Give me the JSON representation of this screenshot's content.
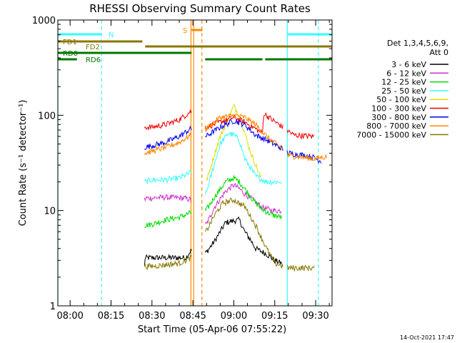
{
  "colors": {
    "background": "#ffffff",
    "axis": "#000000",
    "cyan": "#33ffff",
    "orange": "#ff8800",
    "olive": "#887700",
    "green": "#007700"
  },
  "chart_data": {
    "type": "line",
    "title": "RHESSI Observing Summary Count Rates",
    "xlabel": "Start Time (05-Apr-06 07:55:22)",
    "ylabel": "Count Rate (s⁻¹ detector⁻¹)",
    "yscale": "log",
    "ylim": [
      1,
      1000
    ],
    "xlim_minutes": [
      -4.5,
      96
    ],
    "xticks": [
      {
        "m": 0,
        "label": "08:00"
      },
      {
        "m": 15,
        "label": "08:15"
      },
      {
        "m": 30,
        "label": "08:30"
      },
      {
        "m": 45,
        "label": "08:45"
      },
      {
        "m": 60,
        "label": "09:00"
      },
      {
        "m": 75,
        "label": "09:15"
      },
      {
        "m": 90,
        "label": "09:30"
      }
    ],
    "yticks": [
      {
        "v": 1,
        "label": "1"
      },
      {
        "v": 10,
        "label": "10"
      },
      {
        "v": 100,
        "label": "100"
      },
      {
        "v": 1000,
        "label": "1000"
      }
    ],
    "timestamp": "14-Oct-2021 17:47",
    "legend_header": [
      "Det 1,3,4,5,6,9,",
      "Att 0"
    ],
    "legend_position": "right",
    "gaps": [
      [
        -4.5,
        27.0
      ],
      [
        44.5,
        49.5
      ],
      [
        78.0,
        79.5
      ]
    ],
    "series": [
      {
        "name": "3 - 6 keV",
        "color": "#000000",
        "values": [
          [
            27.2,
            2.5
          ],
          [
            27.5,
            3.2
          ],
          [
            42.5,
            3.2
          ],
          [
            44.2,
            3.8
          ],
          [
            49.8,
            3.6
          ],
          [
            53,
            4.8
          ],
          [
            57,
            7.5
          ],
          [
            62,
            8
          ],
          [
            64,
            6
          ],
          [
            66,
            5
          ],
          [
            68,
            4
          ],
          [
            72,
            3.5
          ],
          [
            75,
            3
          ],
          [
            77.5,
            2.8
          ]
        ]
      },
      {
        "name": "6 - 12 keV",
        "color": "#cc33cc",
        "values": [
          [
            27.2,
            13
          ],
          [
            28,
            13.5
          ],
          [
            35,
            13.8
          ],
          [
            42,
            13.5
          ],
          [
            44.2,
            13
          ],
          [
            49.8,
            7
          ],
          [
            53,
            11
          ],
          [
            57,
            16
          ],
          [
            60,
            18.5
          ],
          [
            62,
            17
          ],
          [
            64,
            15
          ],
          [
            67,
            13
          ],
          [
            70,
            11
          ],
          [
            74,
            10
          ],
          [
            77.5,
            10
          ]
        ]
      },
      {
        "name": "12 - 25 keV",
        "color": "#00dd00",
        "values": [
          [
            27.2,
            7
          ],
          [
            30,
            7.2
          ],
          [
            35,
            8
          ],
          [
            40,
            8.5
          ],
          [
            44.2,
            9.5
          ],
          [
            49.8,
            10
          ],
          [
            53,
            14
          ],
          [
            57,
            20
          ],
          [
            60,
            22
          ],
          [
            62,
            20
          ],
          [
            64,
            17
          ],
          [
            67,
            13
          ],
          [
            70,
            10.5
          ],
          [
            74,
            9
          ],
          [
            77.5,
            8.5
          ]
        ]
      },
      {
        "name": "25 - 50 keV",
        "color": "#33ffff",
        "values": [
          [
            27.2,
            20
          ],
          [
            30,
            21
          ],
          [
            35,
            21
          ],
          [
            40,
            22
          ],
          [
            44.2,
            25
          ],
          [
            49.8,
            15
          ],
          [
            52,
            25
          ],
          [
            55,
            50
          ],
          [
            58,
            65
          ],
          [
            60,
            62
          ],
          [
            62,
            55
          ],
          [
            64,
            35
          ],
          [
            68,
            23
          ],
          [
            72,
            20
          ],
          [
            77.5,
            20
          ]
        ]
      },
      {
        "name": "50 - 100 keV",
        "color": "#dddd00",
        "values": [
          [
            49.8,
            20
          ],
          [
            51,
            25
          ],
          [
            53,
            40
          ],
          [
            55,
            60
          ],
          [
            57,
            80
          ],
          [
            60,
            125
          ],
          [
            62,
            100
          ],
          [
            64,
            65
          ],
          [
            66,
            42
          ],
          [
            68,
            30
          ],
          [
            70,
            22
          ]
        ]
      },
      {
        "name": "100 - 300 keV",
        "color": "#ee0000",
        "values": [
          [
            27.2,
            75
          ],
          [
            30,
            75
          ],
          [
            35,
            80
          ],
          [
            40,
            90
          ],
          [
            44.2,
            110
          ],
          [
            49.8,
            75
          ],
          [
            55,
            85
          ],
          [
            60,
            95
          ],
          [
            64,
            85
          ],
          [
            68,
            72
          ],
          [
            70.5,
            65
          ],
          [
            71,
            105
          ],
          [
            74,
            90
          ],
          [
            78,
            75
          ],
          [
            82,
            62
          ],
          [
            89.5,
            60
          ]
        ]
      },
      {
        "name": "300 - 800 keV",
        "color": "#0000ee",
        "values": [
          [
            27.2,
            46
          ],
          [
            30,
            48
          ],
          [
            35,
            52
          ],
          [
            40,
            60
          ],
          [
            44.2,
            72
          ],
          [
            49.8,
            60
          ],
          [
            55,
            75
          ],
          [
            60,
            88
          ],
          [
            64,
            80
          ],
          [
            68,
            62
          ],
          [
            72,
            55
          ],
          [
            77.5,
            45
          ],
          [
            80,
            40
          ],
          [
            86,
            38
          ],
          [
            89.5,
            36
          ],
          [
            92,
            33
          ]
        ]
      },
      {
        "name": "800 - 7000 keV",
        "color": "#ff8800",
        "values": [
          [
            27.2,
            40
          ],
          [
            30,
            42
          ],
          [
            35,
            46
          ],
          [
            40,
            52
          ],
          [
            44.2,
            62
          ],
          [
            49.8,
            72
          ],
          [
            55,
            95
          ],
          [
            60,
            100
          ],
          [
            64,
            95
          ],
          [
            68,
            80
          ],
          [
            72,
            60
          ],
          [
            77.5,
            45
          ],
          [
            80,
            38
          ],
          [
            86,
            36
          ],
          [
            89.5,
            35
          ],
          [
            94,
            37
          ]
        ]
      },
      {
        "name": "7000 - 15000 keV",
        "color": "#887700",
        "values": [
          [
            27.2,
            2.6
          ],
          [
            30,
            2.6
          ],
          [
            35,
            2.7
          ],
          [
            40,
            2.8
          ],
          [
            44.2,
            3.2
          ],
          [
            49.8,
            6
          ],
          [
            53,
            9
          ],
          [
            56,
            12
          ],
          [
            60,
            13
          ],
          [
            64,
            11
          ],
          [
            68,
            7
          ],
          [
            72,
            4
          ],
          [
            75,
            2.8
          ],
          [
            80,
            2.5
          ],
          [
            89.5,
            2.5
          ]
        ]
      }
    ],
    "annotations": [
      {
        "label": "N",
        "color": "#33ffff",
        "line": [
          -4.5,
          11.5
        ],
        "line2": [
          79.5,
          96
        ]
      },
      {
        "label": "FD1",
        "color": "#887700",
        "line": [
          -4.5,
          26.5
        ]
      },
      {
        "label": "FD2",
        "color": "#887700",
        "line": [
          27.5,
          96
        ]
      },
      {
        "label": "RD0",
        "color": "#007700",
        "line": [
          -4.5,
          44.5
        ]
      },
      {
        "label": "RD6",
        "color": "#007700",
        "line": [
          -4.5,
          2.5
        ],
        "line2": [
          49.5,
          70.5
        ],
        "line3": [
          71.5,
          96
        ]
      },
      {
        "label": "S",
        "color": "#ff8800",
        "line": [
          44.5,
          48.5
        ]
      }
    ],
    "vlines": [
      {
        "m": -4.5,
        "color": "#33ffff",
        "dashed": false
      },
      {
        "m": 11.5,
        "color": "#33ffff",
        "dashed": true
      },
      {
        "m": 44.3,
        "color": "#ff8800",
        "dashed": false
      },
      {
        "m": 45.3,
        "color": "#ff8800",
        "dashed": false
      },
      {
        "m": 48.3,
        "color": "#ff8800",
        "dashed": true
      },
      {
        "m": 79.6,
        "color": "#33ffff",
        "dashed": false
      },
      {
        "m": 91.0,
        "color": "#33ffff",
        "dashed": true
      }
    ]
  }
}
